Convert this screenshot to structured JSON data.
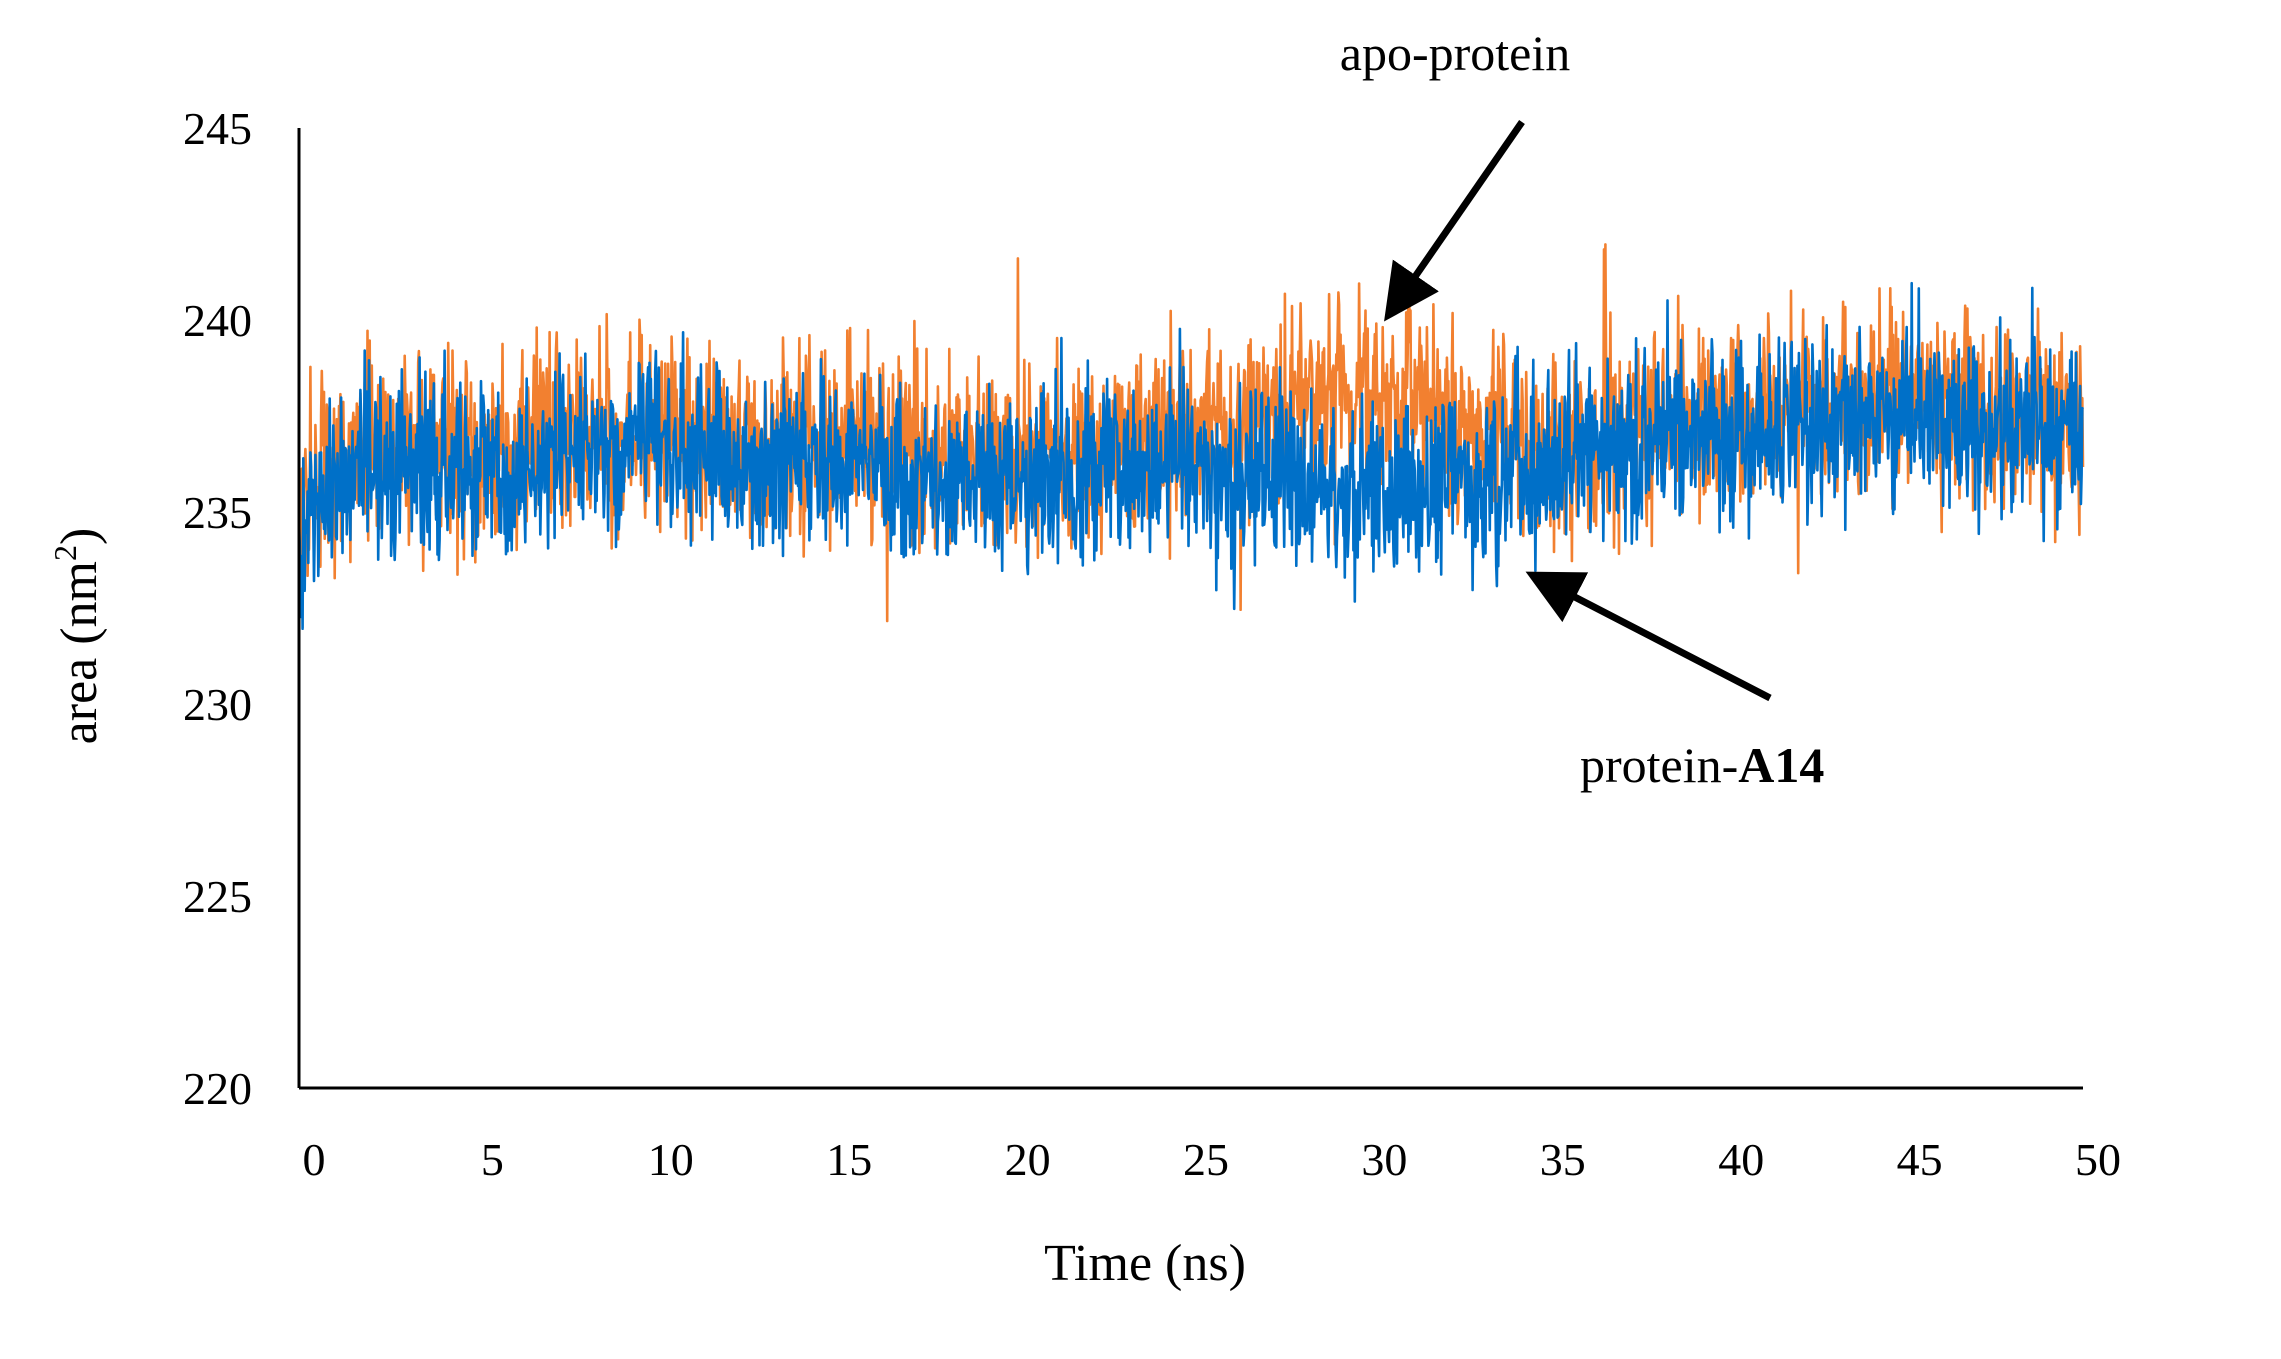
{
  "chart_data": {
    "type": "line",
    "title": "",
    "xlabel": "Time (ns)",
    "ylabel": "area (nm",
    "ylabel_sup": "2",
    "ylabel_close": ")",
    "xlim": [
      0,
      50
    ],
    "ylim": [
      220,
      245
    ],
    "xticks": [
      "0",
      "5",
      "10",
      "15",
      "20",
      "25",
      "30",
      "35",
      "40",
      "45",
      "50"
    ],
    "yticks": [
      "220",
      "225",
      "230",
      "235",
      "240",
      "245"
    ],
    "series": [
      {
        "name": "apo-protein",
        "color": "#F28030",
        "x": [
          0,
          0.5,
          1,
          2,
          3,
          4,
          5,
          6,
          7,
          8,
          9,
          10,
          11,
          12,
          13,
          14,
          15,
          16,
          17,
          18,
          19,
          20,
          21,
          22,
          23,
          24,
          25,
          26,
          27,
          28,
          29,
          30,
          31,
          32,
          33,
          34,
          35,
          36,
          37,
          38,
          39,
          40,
          41,
          42,
          43,
          44,
          45,
          46,
          47,
          48,
          49,
          50
        ],
        "mean": [
          234.5,
          235.8,
          236.2,
          236.6,
          236.8,
          236.8,
          236.6,
          236.4,
          236.9,
          237.1,
          237.1,
          237.2,
          237.0,
          236.8,
          236.7,
          236.8,
          236.9,
          236.8,
          236.8,
          236.6,
          236.6,
          236.4,
          236.6,
          236.8,
          237.0,
          237.2,
          237.3,
          237.0,
          237.3,
          237.8,
          238.2,
          238.3,
          237.9,
          237.4,
          237.1,
          236.9,
          236.6,
          236.8,
          237.0,
          237.2,
          237.4,
          237.6,
          237.7,
          237.8,
          237.8,
          237.8,
          238.0,
          237.9,
          237.7,
          237.5,
          237.4,
          237.4
        ],
        "spread": 1.5
      },
      {
        "name": "protein-A14",
        "color": "#0070C8",
        "x": [
          0,
          0.5,
          1,
          2,
          3,
          4,
          5,
          6,
          7,
          8,
          9,
          10,
          11,
          12,
          13,
          14,
          15,
          16,
          17,
          18,
          19,
          20,
          21,
          22,
          23,
          24,
          25,
          26,
          27,
          28,
          29,
          30,
          31,
          32,
          33,
          34,
          35,
          36,
          37,
          38,
          39,
          40,
          41,
          42,
          43,
          44,
          45,
          46,
          47,
          48,
          49,
          50
        ],
        "mean": [
          233.5,
          235.7,
          235.9,
          236.2,
          236.4,
          236.3,
          236.0,
          235.7,
          236.2,
          236.5,
          236.7,
          236.8,
          236.6,
          236.2,
          236.1,
          236.3,
          236.4,
          236.2,
          236.0,
          235.8,
          235.9,
          235.8,
          236.0,
          236.0,
          236.1,
          236.2,
          236.0,
          235.8,
          236.0,
          235.9,
          235.6,
          235.5,
          235.6,
          235.7,
          235.9,
          236.0,
          236.3,
          236.6,
          236.8,
          236.9,
          237.0,
          237.1,
          237.2,
          237.3,
          237.3,
          237.4,
          237.4,
          237.3,
          237.2,
          237.2,
          237.3,
          237.3
        ],
        "spread": 1.4
      }
    ],
    "annotations": [
      {
        "text": "apo-protein",
        "target_series": "apo-protein",
        "x": 30,
        "y": 240.0
      },
      {
        "text_prefix": "protein-",
        "text_bold": "A14",
        "target_series": "protein-A14",
        "x": 34,
        "y": 233.5
      }
    ]
  }
}
